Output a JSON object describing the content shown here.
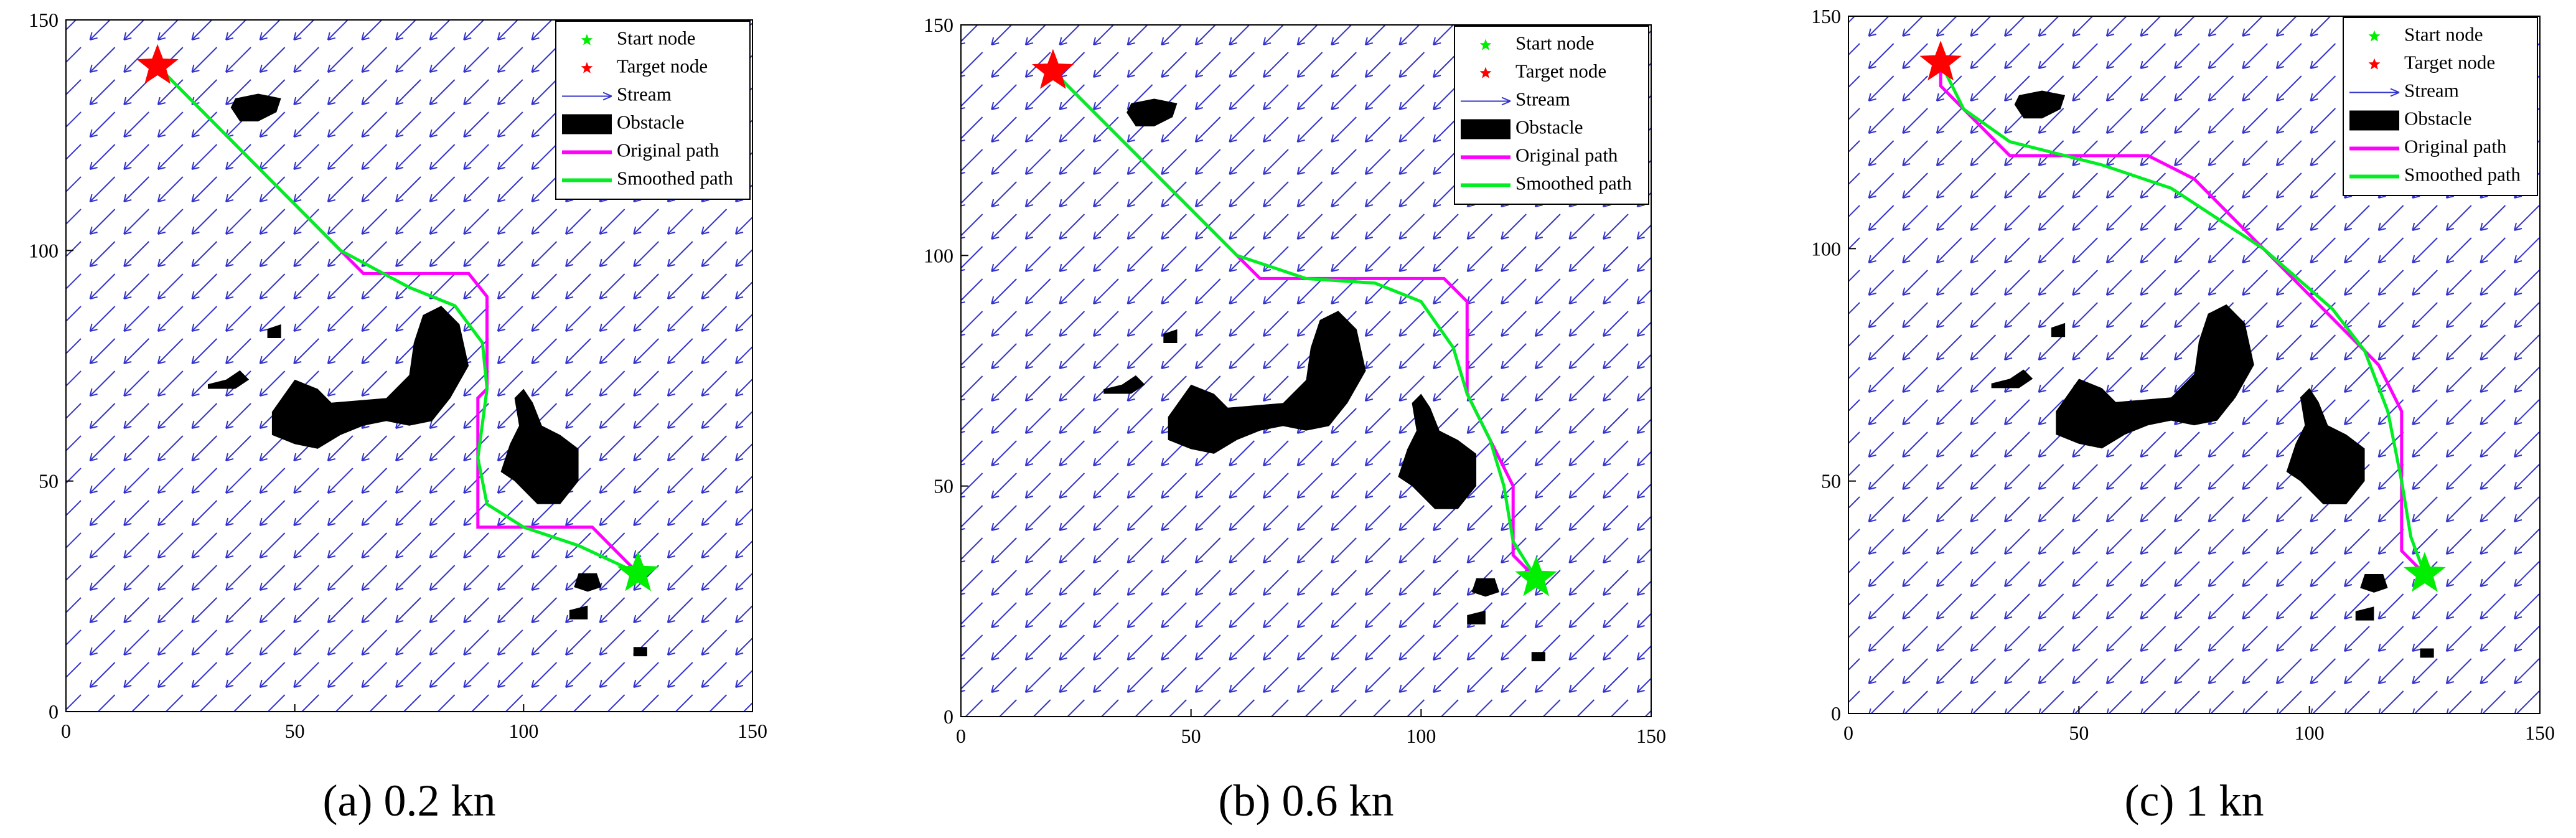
{
  "chart_data": [
    {
      "type": "line",
      "caption": "(a) 0.2 kn",
      "xlim": [
        0,
        150
      ],
      "ylim": [
        0,
        150
      ],
      "xticks": [
        0,
        50,
        100,
        150
      ],
      "yticks": [
        0,
        50,
        100,
        150
      ],
      "legend": "northeast",
      "series": [
        {
          "name": "Start node",
          "color": "#00ee00",
          "marker": "star",
          "x": [
            125
          ],
          "values": [
            30
          ]
        },
        {
          "name": "Target node",
          "color": "#ff0000",
          "marker": "star",
          "x": [
            20
          ],
          "values": [
            140
          ]
        },
        {
          "name": "Stream",
          "color": "#3333cc",
          "marker": "arrow"
        },
        {
          "name": "Obstacle",
          "color": "#000000",
          "marker": "patch",
          "polygons": [
            {
              "x": [
                37,
                42,
                47,
                46,
                42,
                38,
                36
              ],
              "y": [
                133,
                134,
                133,
                130,
                128,
                128,
                131
              ]
            },
            {
              "x": [
                45,
                50,
                55,
                58,
                70,
                75,
                76,
                78,
                82,
                86,
                88,
                84,
                80,
                75,
                70,
                65,
                60,
                55,
                50,
                45
              ],
              "y": [
                65,
                72,
                70,
                67,
                68,
                73,
                80,
                86,
                88,
                84,
                75,
                68,
                63,
                62,
                63,
                62,
                60,
                57,
                58,
                60
              ]
            },
            {
              "x": [
                98,
                100,
                102,
                104,
                108,
                112,
                112,
                108,
                103,
                98,
                95,
                97,
                99
              ],
              "y": [
                68,
                70,
                67,
                62,
                60,
                57,
                50,
                45,
                45,
                50,
                52,
                58,
                62
              ]
            },
            {
              "x": [
                44,
                47,
                47,
                44
              ],
              "y": [
                83,
                84,
                81,
                81
              ]
            },
            {
              "x": [
                31,
                35,
                38,
                40,
                37,
                31
              ],
              "y": [
                71,
                72,
                74,
                72,
                70,
                70
              ]
            },
            {
              "x": [
                112,
                116,
                117,
                114,
                111
              ],
              "y": [
                30,
                30,
                27,
                26,
                27
              ]
            },
            {
              "x": [
                110,
                114,
                114,
                110
              ],
              "y": [
                22,
                23,
                20,
                20
              ]
            },
            {
              "x": [
                124,
                127,
                127,
                124
              ],
              "y": [
                14,
                14,
                12,
                12
              ]
            }
          ]
        },
        {
          "name": "Original path",
          "color": "#ff00ff",
          "marker": "line",
          "x": [
            20,
            65,
            88,
            92,
            92,
            90,
            90,
            115,
            125
          ],
          "values": [
            140,
            95,
            95,
            90,
            70,
            68,
            40,
            40,
            30
          ]
        },
        {
          "name": "Smoothed path",
          "color": "#00ee22",
          "marker": "line",
          "x": [
            20,
            40,
            60,
            75,
            85,
            91,
            92,
            90,
            92,
            100,
            112,
            125
          ],
          "values": [
            140,
            120,
            100,
            92,
            88,
            80,
            70,
            55,
            45,
            40,
            36,
            30
          ]
        }
      ]
    },
    {
      "type": "line",
      "caption": "(b) 0.6 kn",
      "xlim": [
        0,
        150
      ],
      "ylim": [
        0,
        150
      ],
      "xticks": [
        0,
        50,
        100,
        150
      ],
      "yticks": [
        0,
        50,
        100,
        150
      ],
      "legend": "northeast",
      "series": [
        {
          "name": "Start node",
          "color": "#00ee00",
          "marker": "star",
          "x": [
            125
          ],
          "values": [
            30
          ]
        },
        {
          "name": "Target node",
          "color": "#ff0000",
          "marker": "star",
          "x": [
            20
          ],
          "values": [
            140
          ]
        },
        {
          "name": "Stream",
          "color": "#3333cc",
          "marker": "arrow"
        },
        {
          "name": "Obstacle",
          "color": "#000000",
          "marker": "patch",
          "polygons": [
            {
              "x": [
                37,
                42,
                47,
                46,
                42,
                38,
                36
              ],
              "y": [
                133,
                134,
                133,
                130,
                128,
                128,
                131
              ]
            },
            {
              "x": [
                45,
                50,
                55,
                58,
                70,
                75,
                76,
                78,
                82,
                86,
                88,
                84,
                80,
                75,
                70,
                65,
                60,
                55,
                50,
                45
              ],
              "y": [
                65,
                72,
                70,
                67,
                68,
                73,
                80,
                86,
                88,
                84,
                75,
                68,
                63,
                62,
                63,
                62,
                60,
                57,
                58,
                60
              ]
            },
            {
              "x": [
                98,
                100,
                102,
                104,
                108,
                112,
                112,
                108,
                103,
                98,
                95,
                97,
                99
              ],
              "y": [
                68,
                70,
                67,
                62,
                60,
                57,
                50,
                45,
                45,
                50,
                52,
                58,
                62
              ]
            },
            {
              "x": [
                44,
                47,
                47,
                44
              ],
              "y": [
                83,
                84,
                81,
                81
              ]
            },
            {
              "x": [
                31,
                35,
                38,
                40,
                37,
                31
              ],
              "y": [
                71,
                72,
                74,
                72,
                70,
                70
              ]
            },
            {
              "x": [
                112,
                116,
                117,
                114,
                111
              ],
              "y": [
                30,
                30,
                27,
                26,
                27
              ]
            },
            {
              "x": [
                110,
                114,
                114,
                110
              ],
              "y": [
                22,
                23,
                20,
                20
              ]
            },
            {
              "x": [
                124,
                127,
                127,
                124
              ],
              "y": [
                14,
                14,
                12,
                12
              ]
            }
          ]
        },
        {
          "name": "Original path",
          "color": "#ff00ff",
          "marker": "line",
          "x": [
            20,
            65,
            105,
            110,
            110,
            115,
            120,
            120,
            125
          ],
          "values": [
            140,
            95,
            95,
            90,
            70,
            60,
            50,
            35,
            30
          ]
        },
        {
          "name": "Smoothed path",
          "color": "#00ee22",
          "marker": "line",
          "x": [
            20,
            45,
            60,
            75,
            90,
            100,
            107,
            110,
            115,
            118,
            120,
            125
          ],
          "values": [
            140,
            115,
            100,
            95,
            94,
            90,
            80,
            70,
            60,
            50,
            38,
            30
          ]
        }
      ]
    },
    {
      "type": "line",
      "caption": "(c) 1 kn",
      "xlim": [
        0,
        150
      ],
      "ylim": [
        0,
        150
      ],
      "xticks": [
        0,
        50,
        100,
        150
      ],
      "yticks": [
        0,
        50,
        100,
        150
      ],
      "legend": "northeast",
      "series": [
        {
          "name": "Start node",
          "color": "#00ee00",
          "marker": "star",
          "x": [
            125
          ],
          "values": [
            30
          ]
        },
        {
          "name": "Target node",
          "color": "#ff0000",
          "marker": "star",
          "x": [
            20
          ],
          "values": [
            140
          ]
        },
        {
          "name": "Stream",
          "color": "#3333cc",
          "marker": "arrow"
        },
        {
          "name": "Obstacle",
          "color": "#000000",
          "marker": "patch",
          "polygons": [
            {
              "x": [
                37,
                42,
                47,
                46,
                42,
                38,
                36
              ],
              "y": [
                133,
                134,
                133,
                130,
                128,
                128,
                131
              ]
            },
            {
              "x": [
                45,
                50,
                55,
                58,
                70,
                75,
                76,
                78,
                82,
                86,
                88,
                84,
                80,
                75,
                70,
                65,
                60,
                55,
                50,
                45
              ],
              "y": [
                65,
                72,
                70,
                67,
                68,
                73,
                80,
                86,
                88,
                84,
                75,
                68,
                63,
                62,
                63,
                62,
                60,
                57,
                58,
                60
              ]
            },
            {
              "x": [
                98,
                100,
                102,
                104,
                108,
                112,
                112,
                108,
                103,
                98,
                95,
                97,
                99
              ],
              "y": [
                68,
                70,
                67,
                62,
                60,
                57,
                50,
                45,
                45,
                50,
                52,
                58,
                62
              ]
            },
            {
              "x": [
                44,
                47,
                47,
                44
              ],
              "y": [
                83,
                84,
                81,
                81
              ]
            },
            {
              "x": [
                31,
                35,
                38,
                40,
                37,
                31
              ],
              "y": [
                71,
                72,
                74,
                72,
                70,
                70
              ]
            },
            {
              "x": [
                112,
                116,
                117,
                114,
                111
              ],
              "y": [
                30,
                30,
                27,
                26,
                27
              ]
            },
            {
              "x": [
                110,
                114,
                114,
                110
              ],
              "y": [
                22,
                23,
                20,
                20
              ]
            },
            {
              "x": [
                124,
                127,
                127,
                124
              ],
              "y": [
                14,
                14,
                12,
                12
              ]
            }
          ]
        },
        {
          "name": "Original path",
          "color": "#ff00ff",
          "marker": "line",
          "x": [
            20,
            20,
            35,
            65,
            75,
            110,
            115,
            120,
            120,
            125
          ],
          "values": [
            140,
            135,
            120,
            120,
            115,
            80,
            75,
            65,
            35,
            30
          ]
        },
        {
          "name": "Smoothed path",
          "color": "#00ee22",
          "marker": "line",
          "x": [
            20,
            25,
            35,
            55,
            70,
            90,
            105,
            112,
            117,
            120,
            122,
            125
          ],
          "values": [
            140,
            130,
            123,
            118,
            113,
            100,
            87,
            78,
            65,
            50,
            38,
            30
          ]
        }
      ]
    }
  ]
}
